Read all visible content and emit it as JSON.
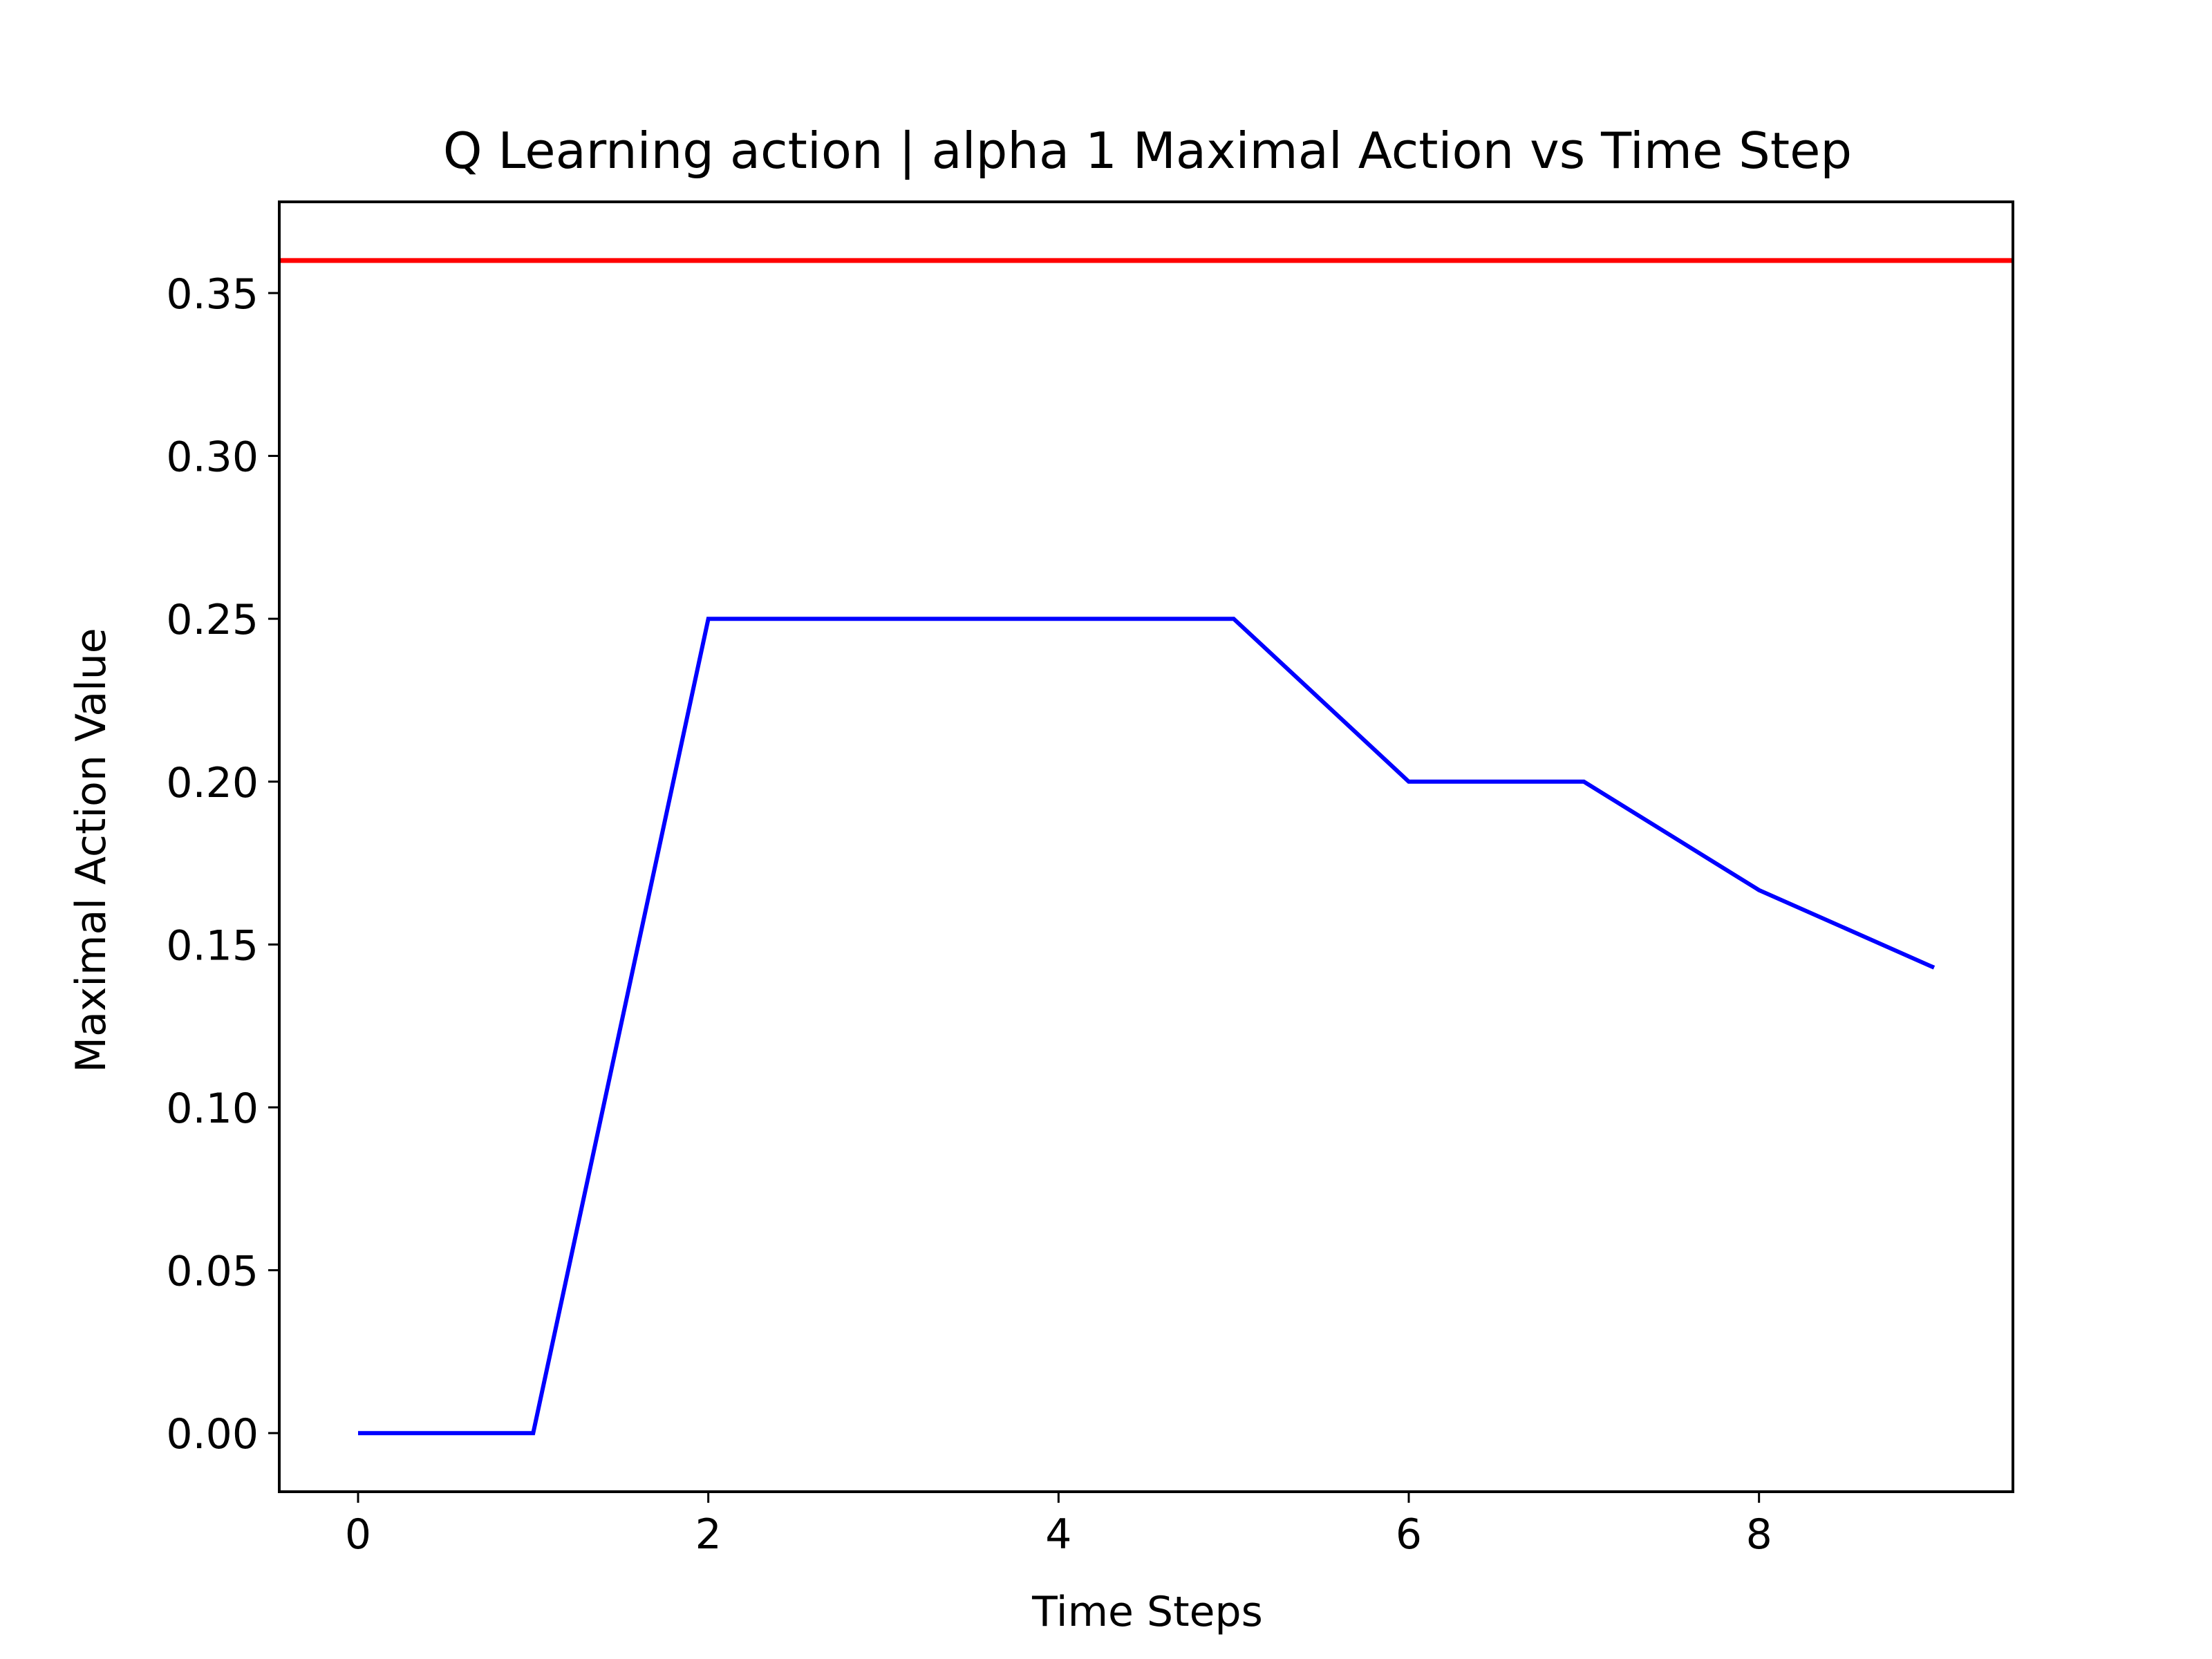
{
  "chart_data": {
    "type": "line",
    "title": "Q Learning action | alpha 1 Maximal Action vs Time Step",
    "xlabel": "Time Steps",
    "ylabel": "Maximal Action Value",
    "xlim": [
      -0.45,
      9.45
    ],
    "ylim": [
      -0.018,
      0.378
    ],
    "grid": false,
    "xticks": [
      0,
      2,
      4,
      6,
      8
    ],
    "xtick_labels": [
      "0",
      "2",
      "4",
      "6",
      "8"
    ],
    "yticks": [
      0.0,
      0.05,
      0.1,
      0.15,
      0.2,
      0.25,
      0.3,
      0.35
    ],
    "ytick_labels": [
      "0.00",
      "0.05",
      "0.10",
      "0.15",
      "0.20",
      "0.25",
      "0.30",
      "0.35"
    ],
    "series": [
      {
        "x": [
          0,
          1,
          2,
          3,
          4,
          5,
          6,
          7,
          8,
          9
        ],
        "values": [
          0.0,
          0.0,
          0.25,
          0.25,
          0.25,
          0.25,
          0.2,
          0.2,
          0.1667,
          0.1429
        ],
        "color": "#0000ff"
      }
    ],
    "hlines": [
      {
        "y": 0.36,
        "color": "#ff0000"
      }
    ]
  }
}
